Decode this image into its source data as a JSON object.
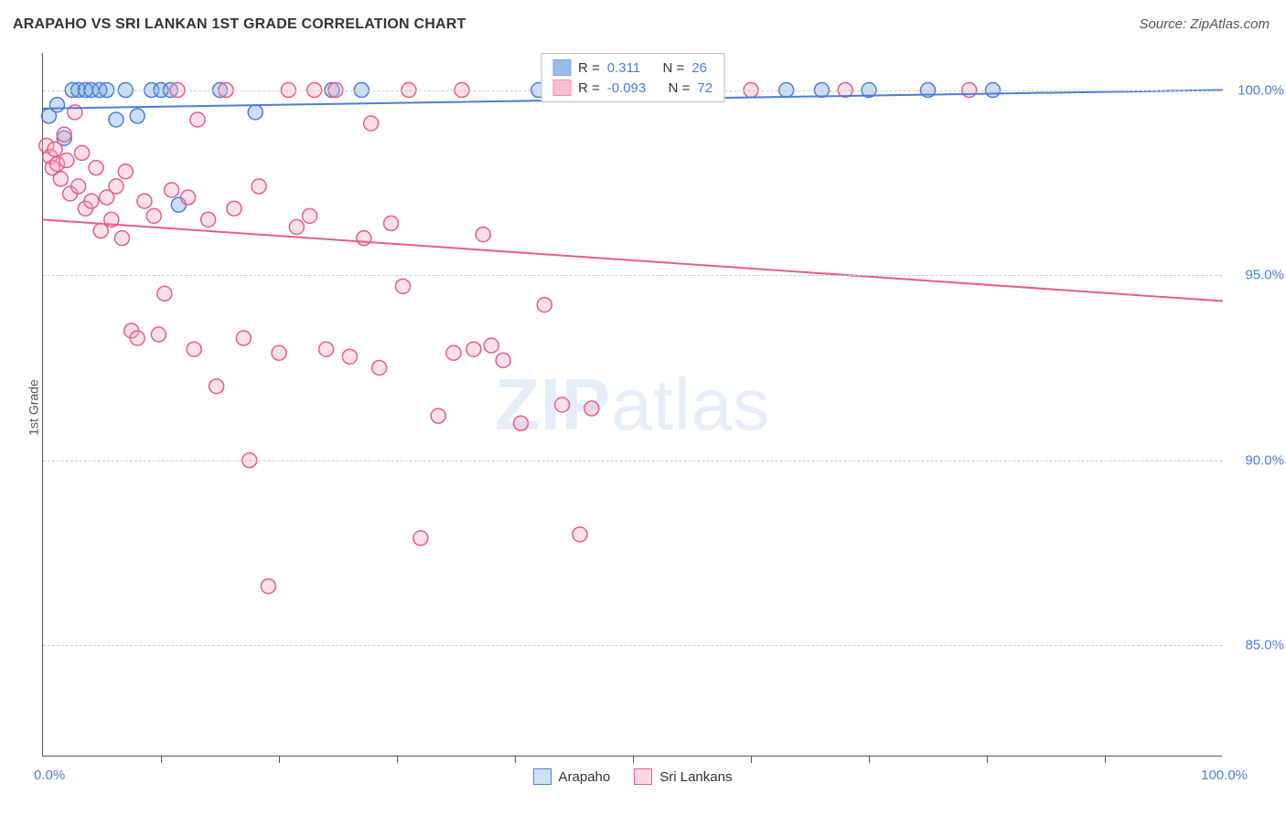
{
  "title": "ARAPAHO VS SRI LANKAN 1ST GRADE CORRELATION CHART",
  "source": "Source: ZipAtlas.com",
  "ylabel": "1st Grade",
  "watermark": {
    "bold": "ZIP",
    "light": "atlas"
  },
  "chart": {
    "type": "scatter",
    "background_color": "#ffffff",
    "grid_color": "#cccccc",
    "axis_color": "#555555",
    "tick_label_color": "#4a7fd8",
    "tick_fontsize": 15,
    "title_fontsize": 16,
    "xlim": [
      0,
      100
    ],
    "ylim": [
      82,
      101
    ],
    "x_label_min": "0.0%",
    "x_label_max": "100.0%",
    "x_tick_positions": [
      10,
      20,
      30,
      40,
      50,
      60,
      70,
      80,
      90
    ],
    "y_gridlines": [
      85,
      90,
      95,
      100
    ],
    "y_tick_labels": [
      "85.0%",
      "90.0%",
      "95.0%",
      "100.0%"
    ],
    "marker_radius": 8,
    "marker_fill_opacity": 0.35,
    "marker_stroke_width": 1.5,
    "series": [
      {
        "name": "Arapaho",
        "color": "#6ea0e0",
        "stroke": "#4a7fd8",
        "r": 0.311,
        "n": 26,
        "trend": {
          "x1": 0,
          "y1": 99.5,
          "x2": 100,
          "y2": 100.0,
          "width": 2
        },
        "points": [
          {
            "x": 0.5,
            "y": 99.3
          },
          {
            "x": 1.2,
            "y": 99.6
          },
          {
            "x": 1.8,
            "y": 98.7
          },
          {
            "x": 2.5,
            "y": 100.0
          },
          {
            "x": 3.0,
            "y": 100.0
          },
          {
            "x": 3.6,
            "y": 100.0
          },
          {
            "x": 4.1,
            "y": 100.0
          },
          {
            "x": 4.8,
            "y": 100.0
          },
          {
            "x": 5.4,
            "y": 100.0
          },
          {
            "x": 6.2,
            "y": 99.2
          },
          {
            "x": 7.0,
            "y": 100.0
          },
          {
            "x": 8.0,
            "y": 99.3
          },
          {
            "x": 9.2,
            "y": 100.0
          },
          {
            "x": 10.0,
            "y": 100.0
          },
          {
            "x": 10.8,
            "y": 100.0
          },
          {
            "x": 11.5,
            "y": 96.9
          },
          {
            "x": 15.0,
            "y": 100.0
          },
          {
            "x": 18.0,
            "y": 99.4
          },
          {
            "x": 24.5,
            "y": 100.0
          },
          {
            "x": 27.0,
            "y": 100.0
          },
          {
            "x": 42.0,
            "y": 100.0
          },
          {
            "x": 63.0,
            "y": 100.0
          },
          {
            "x": 66.0,
            "y": 100.0
          },
          {
            "x": 70.0,
            "y": 100.0
          },
          {
            "x": 75.0,
            "y": 100.0
          },
          {
            "x": 80.5,
            "y": 100.0
          }
        ]
      },
      {
        "name": "Sri Lankans",
        "color": "#f4a6bd",
        "stroke": "#e75d8b",
        "r": -0.093,
        "n": 72,
        "trend": {
          "x1": 0,
          "y1": 96.5,
          "x2": 100,
          "y2": 94.3,
          "width": 2
        },
        "points": [
          {
            "x": 0.3,
            "y": 98.5
          },
          {
            "x": 0.6,
            "y": 98.2
          },
          {
            "x": 0.8,
            "y": 97.9
          },
          {
            "x": 1.0,
            "y": 98.4
          },
          {
            "x": 1.2,
            "y": 98.0
          },
          {
            "x": 1.5,
            "y": 97.6
          },
          {
            "x": 1.8,
            "y": 98.8
          },
          {
            "x": 2.0,
            "y": 98.1
          },
          {
            "x": 2.3,
            "y": 97.2
          },
          {
            "x": 2.7,
            "y": 99.4
          },
          {
            "x": 3.0,
            "y": 97.4
          },
          {
            "x": 3.3,
            "y": 98.3
          },
          {
            "x": 3.6,
            "y": 96.8
          },
          {
            "x": 4.1,
            "y": 97.0
          },
          {
            "x": 4.5,
            "y": 97.9
          },
          {
            "x": 4.9,
            "y": 96.2
          },
          {
            "x": 5.4,
            "y": 97.1
          },
          {
            "x": 5.8,
            "y": 96.5
          },
          {
            "x": 6.2,
            "y": 97.4
          },
          {
            "x": 6.7,
            "y": 96.0
          },
          {
            "x": 7.0,
            "y": 97.8
          },
          {
            "x": 7.5,
            "y": 93.5
          },
          {
            "x": 8.0,
            "y": 93.3
          },
          {
            "x": 8.6,
            "y": 97.0
          },
          {
            "x": 9.4,
            "y": 96.6
          },
          {
            "x": 9.8,
            "y": 93.4
          },
          {
            "x": 10.3,
            "y": 94.5
          },
          {
            "x": 10.9,
            "y": 97.3
          },
          {
            "x": 11.4,
            "y": 100.0
          },
          {
            "x": 12.3,
            "y": 97.1
          },
          {
            "x": 12.8,
            "y": 93.0
          },
          {
            "x": 13.1,
            "y": 99.2
          },
          {
            "x": 14.0,
            "y": 96.5
          },
          {
            "x": 14.7,
            "y": 92.0
          },
          {
            "x": 15.5,
            "y": 100.0
          },
          {
            "x": 16.2,
            "y": 96.8
          },
          {
            "x": 17.0,
            "y": 93.3
          },
          {
            "x": 17.5,
            "y": 90.0
          },
          {
            "x": 18.3,
            "y": 97.4
          },
          {
            "x": 19.1,
            "y": 86.6
          },
          {
            "x": 20.0,
            "y": 92.9
          },
          {
            "x": 20.8,
            "y": 100.0
          },
          {
            "x": 21.5,
            "y": 96.3
          },
          {
            "x": 22.6,
            "y": 96.6
          },
          {
            "x": 23.0,
            "y": 100.0
          },
          {
            "x": 24.0,
            "y": 93.0
          },
          {
            "x": 24.8,
            "y": 100.0
          },
          {
            "x": 26.0,
            "y": 92.8
          },
          {
            "x": 27.2,
            "y": 96.0
          },
          {
            "x": 27.8,
            "y": 99.1
          },
          {
            "x": 28.5,
            "y": 92.5
          },
          {
            "x": 29.5,
            "y": 96.4
          },
          {
            "x": 30.5,
            "y": 94.7
          },
          {
            "x": 31.0,
            "y": 100.0
          },
          {
            "x": 32.0,
            "y": 87.9
          },
          {
            "x": 33.5,
            "y": 91.2
          },
          {
            "x": 34.8,
            "y": 92.9
          },
          {
            "x": 35.5,
            "y": 100.0
          },
          {
            "x": 36.5,
            "y": 93.0
          },
          {
            "x": 37.3,
            "y": 96.1
          },
          {
            "x": 38.0,
            "y": 93.1
          },
          {
            "x": 39.0,
            "y": 92.7
          },
          {
            "x": 40.5,
            "y": 91.0
          },
          {
            "x": 42.5,
            "y": 94.2
          },
          {
            "x": 44.0,
            "y": 91.5
          },
          {
            "x": 45.5,
            "y": 88.0
          },
          {
            "x": 46.5,
            "y": 91.4
          },
          {
            "x": 52.0,
            "y": 100.0
          },
          {
            "x": 55.0,
            "y": 100.0
          },
          {
            "x": 60.0,
            "y": 100.0
          },
          {
            "x": 68.0,
            "y": 100.0
          },
          {
            "x": 78.5,
            "y": 100.0
          }
        ]
      }
    ],
    "legend_stats": {
      "r_label": "R =",
      "n_label": "N ="
    },
    "bottom_legend": [
      {
        "label": "Arapaho",
        "fill": "#cfe0f6",
        "stroke": "#4a7fd8"
      },
      {
        "label": "Sri Lankans",
        "fill": "#fbd6e1",
        "stroke": "#e75d8b"
      }
    ]
  }
}
